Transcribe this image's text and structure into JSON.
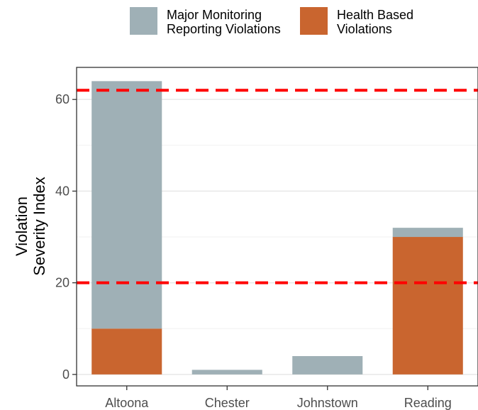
{
  "chart_data": {
    "type": "bar",
    "stacked": true,
    "title": "",
    "xlabel": "",
    "ylabel_lines": [
      "Violation",
      "Severity Index"
    ],
    "categories": [
      "Altoona",
      "Chester",
      "Johnstown",
      "Reading"
    ],
    "series": [
      {
        "name": "Health Based Violations",
        "legend_lines": [
          "Health Based",
          "Violations"
        ],
        "color": "#c9652f",
        "values": [
          10,
          0,
          0,
          30
        ]
      },
      {
        "name": "Major Monitoring Reporting Violations",
        "legend_lines": [
          "Major Monitoring",
          "Reporting Violations"
        ],
        "color": "#9fb0b6",
        "values": [
          54,
          1,
          4,
          2
        ]
      }
    ],
    "ylim": [
      -2.5,
      67
    ],
    "yticks": [
      0,
      20,
      40,
      60
    ],
    "minor_gridlines": [
      10,
      30,
      50
    ],
    "grid": true,
    "legend_position": "top",
    "reference_lines": [
      {
        "value": 62,
        "color": "#ff0000",
        "style": "dashed"
      },
      {
        "value": 20,
        "color": "#ff0000",
        "style": "dashed"
      }
    ]
  }
}
